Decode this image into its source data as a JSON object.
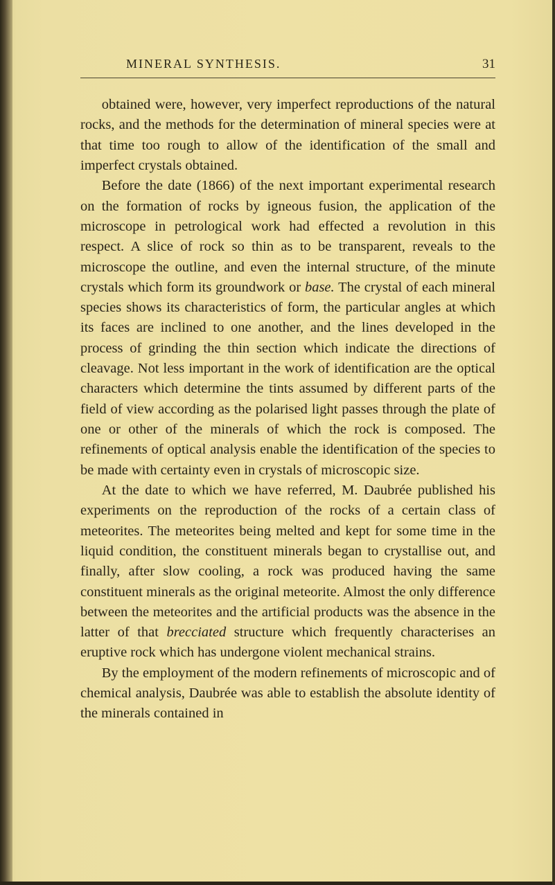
{
  "background_color": "#e8dc9f",
  "text_color": "#282318",
  "font_family": "Times New Roman",
  "body_fontsize": 20.5,
  "line_height": 1.43,
  "header": {
    "running_title": "MINERAL SYNTHESIS.",
    "page_number": "31",
    "title_fontsize": 18,
    "title_letter_spacing": 2
  },
  "paragraphs": {
    "p1": "obtained were, however, very imperfect reproductions of the natural rocks, and the methods for the determination of mineral species were at that time too rough to allow of the identification of the small and imperfect crystals obtained.",
    "p2_part1": "Before the date (1866) of the next important experimental research on the formation of rocks by igneous fusion, the application of the microscope in petrological work had effected a revolution in this respect. A slice of rock so thin as to be transparent, reveals to the microscope the outline, and even the internal structure, of the minute crystals which form its groundwork or ",
    "p2_base": "base.",
    "p2_part2": " The crystal of each mineral species shows its characteristics of form, the particular angles at which its faces are inclined to one another, and the lines developed in the process of grinding the thin section which indicate the directions of cleavage. Not less important in the work of identification are the optical characters which determine the tints assumed by different parts of the field of view according as the polarised light passes through the plate of one or other of the minerals of which the rock is composed. The refinements of optical analysis enable the identification of the species to be made with certainty even in crystals of microscopic size.",
    "p3_part1": "At the date to which we have referred, M. Daubrée published his experiments on the reproduction of the rocks of a certain class of meteorites. The meteorites being melted and kept for some time in the liquid condition, the constituent minerals began to crystallise out, and finally, after slow cooling, a rock was produced having the same constituent minerals as the original meteorite. Almost the only difference between the meteorites and the artificial products was the absence in the latter of that ",
    "p3_brecciated": "brecciated",
    "p3_part2": " structure which frequently characterises an eruptive rock which has undergone violent mechanical strains.",
    "p4": "By the employment of the modern refinements of microscopic and of chemical analysis, Daubrée was able to establish the absolute identity of the minerals contained in"
  }
}
